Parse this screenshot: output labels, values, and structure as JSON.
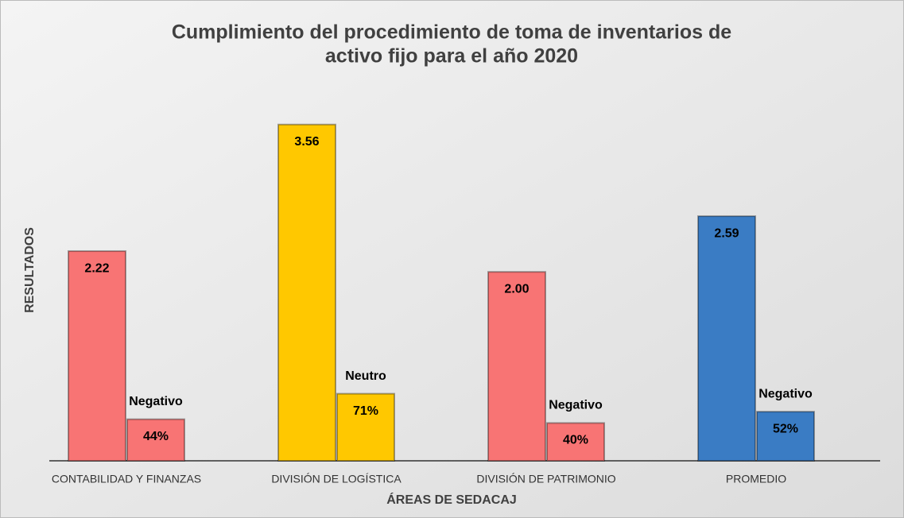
{
  "chart_data": {
    "type": "bar",
    "title": [
      "Cumplimiento del procedimiento de toma de inventarios de",
      "activo fijo para el año 2020"
    ],
    "x_label": "ÁREAS DE SEDACAJ",
    "y_label": "RESULTADOS",
    "categories": [
      "CONTABILIDAD Y FINANZAS",
      "DIVISIÓN DE LOGÍSTICA",
      "DIVISIÓN DE PATRIMONIO",
      "PROMEDIO"
    ],
    "colors": [
      "#f87474",
      "#ffc800",
      "#f87474",
      "#3a7cc4"
    ],
    "ratings": [
      "Negativo",
      "Neutro",
      "Negativo",
      "Negativo"
    ],
    "ylim": [
      0,
      3.6
    ],
    "y2lim": [
      0,
      360
    ],
    "series": [
      {
        "values": [
          2.22,
          3.56,
          2.0,
          2.59
        ],
        "value_labels": [
          "2.22",
          "3.56",
          "2.00",
          "2.59"
        ]
      },
      {
        "axis": "y2",
        "values": [
          44,
          71,
          40,
          52
        ],
        "value_labels": [
          "44%",
          "71%",
          "40%",
          "52%"
        ]
      }
    ]
  }
}
